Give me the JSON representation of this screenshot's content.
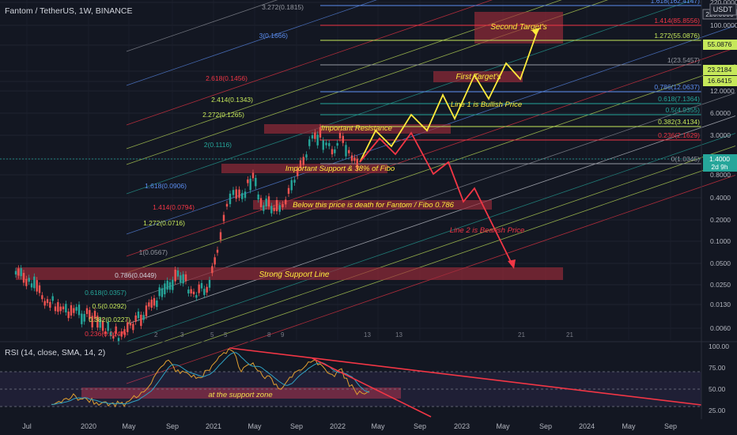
{
  "header": {
    "symbol_line": "Fantom / TetherUS, 1W, BINANCE",
    "currency_badge": "USDT"
  },
  "rsi_panel": {
    "title": "RSI (14, close, SMA, 14, 2)",
    "axis_labels": [
      "100.00",
      "75.00",
      "50.00",
      "25.00"
    ]
  },
  "colors": {
    "background": "#131722",
    "up_candle": "#26a69a",
    "down_candle": "#ef5350",
    "zone_fill": "#9c2b3a",
    "bull_line": "#ffeb3b",
    "bear_line": "#f23645",
    "rsi_line": "#e0a030",
    "rsi_ma": "#2fa3c4"
  },
  "chart_data": {
    "type": "line",
    "title": "Fantom / TetherUS, 1W, BINANCE",
    "yscale": "log",
    "price_axis_labels": [
      "220.0000",
      "100.0000",
      "55.0876",
      "23.2184",
      "16.6415",
      "12.0000",
      "6.0000",
      "3.0000",
      "1.4000",
      "0.8000",
      "0.4000",
      "0.2000",
      "0.1000",
      "0.0500",
      "0.0250",
      "0.0130",
      "0.0060"
    ],
    "current_price": "1.4000",
    "countdown": "2d 9h",
    "time_axis_labels": [
      "Jul",
      "2020",
      "May",
      "Sep",
      "2021",
      "May",
      "Sep",
      "2022",
      "May",
      "Sep",
      "2023",
      "May",
      "Sep",
      "2024",
      "May",
      "Sep"
    ],
    "fib_levels": [
      {
        "label": "1.618(162.4147)",
        "color": "#5b8def"
      },
      {
        "label": "1.414(85.8556)",
        "color": "#f23645"
      },
      {
        "label": "1.272(55.0876)",
        "color": "#c6e85a"
      },
      {
        "label": "1(23.5457)",
        "color": "#9598a1"
      },
      {
        "label": "0.786(12.0637)",
        "color": "#5b8def"
      },
      {
        "label": "0.618(7.1364)",
        "color": "#26a69a"
      },
      {
        "label": "0.5(4.9355)",
        "color": "#26a69a"
      },
      {
        "label": "0.382(3.4134)",
        "color": "#c6e85a"
      },
      {
        "label": "0.236(2.1629)",
        "color": "#f23645"
      },
      {
        "label": "0(1.0345)",
        "color": "#9598a1"
      }
    ],
    "channel_labels": [
      {
        "label": "3.272(0.1815)",
        "color": "#9598a1"
      },
      {
        "label": "3(0.1666)",
        "color": "#5b8def"
      },
      {
        "label": "2.618(0.1456)",
        "color": "#f23645"
      },
      {
        "label": "2.414(0.1343)",
        "color": "#c6e85a"
      },
      {
        "label": "2.272(0.1265)",
        "color": "#c6e85a"
      },
      {
        "label": "2(0.1116)",
        "color": "#26a69a"
      },
      {
        "label": "1.618(0.0906)",
        "color": "#5b8def"
      },
      {
        "label": "1.414(0.0794)",
        "color": "#f23645"
      },
      {
        "label": "1.272(0.0716)",
        "color": "#c6e85a"
      },
      {
        "label": "1(0.0567)",
        "color": "#9598a1"
      },
      {
        "label": "0.786(0.0449)",
        "color": "#d1d4dc"
      },
      {
        "label": "0.618(0.0357)",
        "color": "#26a69a"
      },
      {
        "label": "0.5(0.0292)",
        "color": "#c6e85a"
      },
      {
        "label": "0.382(0.0227)",
        "color": "#c6e85a"
      },
      {
        "label": "0.236(0.0147)",
        "color": "#f23645"
      }
    ],
    "annotations": [
      "Second Target's",
      "First Target's",
      "Line 1 is Bullish Price",
      "Important Resistance",
      "Important Support & 38% of Fibo",
      "Below this price is death for Fantom / Fibo 0.786",
      "Line 2 is Bearish Price",
      "Strong Support Line",
      "at the support zone"
    ],
    "bar_markers": [
      "2",
      "3",
      "5",
      "5",
      "8",
      "9",
      "13",
      "13",
      "21",
      "21"
    ],
    "series": [
      {
        "name": "Line 1 is Bullish Price",
        "color": "#ffeb3b"
      },
      {
        "name": "Line 2 is Bearish Price",
        "color": "#f23645"
      }
    ],
    "legend": "none",
    "grid": true
  }
}
